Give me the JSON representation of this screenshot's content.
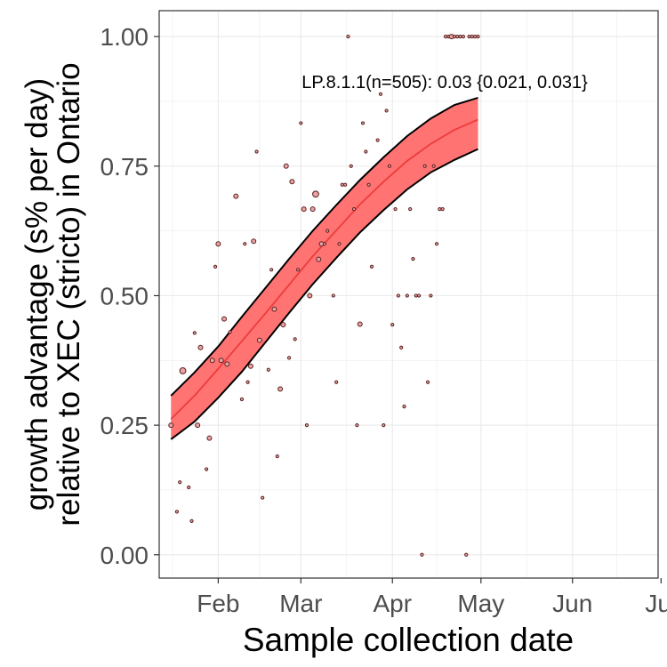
{
  "chart_data": {
    "type": "scatter",
    "title": "",
    "xlabel": "Sample collection date",
    "ylabel_lines": [
      "growth advantage (s% per day)",
      "relative to XEC (stricto) in Ontario"
    ],
    "xlim": [
      "2025-01-12",
      "2025-06-30"
    ],
    "ylim": [
      -0.045,
      1.05
    ],
    "x_ticks": [
      {
        "date": "2025-02-01",
        "label": "Feb"
      },
      {
        "date": "2025-03-01",
        "label": "Mar"
      },
      {
        "date": "2025-04-01",
        "label": "Apr"
      },
      {
        "date": "2025-05-01",
        "label": "May"
      },
      {
        "date": "2025-06-01",
        "label": "Jun"
      },
      {
        "date": "2025-07-01",
        "label": "Jul"
      }
    ],
    "y_ticks": [
      {
        "value": 0,
        "label": "0.00"
      },
      {
        "value": 0.25,
        "label": "0.25"
      },
      {
        "value": 0.5,
        "label": "0.50"
      },
      {
        "value": 0.75,
        "label": "0.75"
      },
      {
        "value": 1,
        "label": "1.00"
      }
    ],
    "grid": true,
    "annotation": "LP.8.1.1(n=505): 0.03 {0.021, 0.031}",
    "colors": {
      "ribbon": "#ff6b6b",
      "fit_line": "#ee3b3b",
      "ribbon_edge": "#000000",
      "point_fill": "#e8a3a3",
      "point_stroke": "#5a1f1f",
      "grid": "#ebebeb",
      "panel_border": "#333333"
    },
    "fit_series": {
      "name": "LP.8.1.1",
      "x": [
        "2025-01-16",
        "2025-01-24",
        "2025-02-01",
        "2025-02-09",
        "2025-02-17",
        "2025-02-25",
        "2025-03-05",
        "2025-03-13",
        "2025-03-21",
        "2025-03-29",
        "2025-04-06",
        "2025-04-14",
        "2025-04-22",
        "2025-04-30"
      ],
      "y": [
        0.262,
        0.307,
        0.359,
        0.412,
        0.466,
        0.521,
        0.576,
        0.626,
        0.676,
        0.72,
        0.76,
        0.793,
        0.82,
        0.84
      ],
      "lower": [
        0.223,
        0.257,
        0.303,
        0.353,
        0.41,
        0.467,
        0.522,
        0.573,
        0.622,
        0.665,
        0.705,
        0.738,
        0.762,
        0.783
      ],
      "upper": [
        0.307,
        0.352,
        0.402,
        0.459,
        0.515,
        0.571,
        0.625,
        0.675,
        0.723,
        0.767,
        0.808,
        0.842,
        0.868,
        0.882
      ]
    },
    "observed_points": {
      "x": [
        "2025-01-16",
        "2025-01-18",
        "2025-01-19",
        "2025-01-20",
        "2025-01-22",
        "2025-01-23",
        "2025-01-24",
        "2025-01-25",
        "2025-01-26",
        "2025-01-28",
        "2025-01-29",
        "2025-01-30",
        "2025-01-31",
        "2025-02-01",
        "2025-02-02",
        "2025-02-03",
        "2025-02-04",
        "2025-02-05",
        "2025-02-07",
        "2025-02-09",
        "2025-02-10",
        "2025-02-11",
        "2025-02-12",
        "2025-02-13",
        "2025-02-14",
        "2025-02-15",
        "2025-02-16",
        "2025-02-18",
        "2025-02-19",
        "2025-02-20",
        "2025-02-21",
        "2025-02-22",
        "2025-02-23",
        "2025-02-24",
        "2025-02-25",
        "2025-02-26",
        "2025-02-27",
        "2025-02-28",
        "2025-03-01",
        "2025-03-02",
        "2025-03-03",
        "2025-03-04",
        "2025-03-05",
        "2025-03-06",
        "2025-03-07",
        "2025-03-08",
        "2025-03-09",
        "2025-03-10",
        "2025-03-12",
        "2025-03-13",
        "2025-03-14",
        "2025-03-15",
        "2025-03-16",
        "2025-03-17",
        "2025-03-18",
        "2025-03-19",
        "2025-03-20",
        "2025-03-21",
        "2025-03-22",
        "2025-03-23",
        "2025-03-24",
        "2025-03-25",
        "2025-03-27",
        "2025-03-28",
        "2025-03-29",
        "2025-03-30",
        "2025-03-31",
        "2025-04-01",
        "2025-04-02",
        "2025-04-03",
        "2025-04-04",
        "2025-04-05",
        "2025-04-06",
        "2025-04-07",
        "2025-04-08",
        "2025-04-09",
        "2025-04-10",
        "2025-04-11",
        "2025-04-12",
        "2025-04-13",
        "2025-04-14",
        "2025-04-15",
        "2025-04-16",
        "2025-04-17",
        "2025-04-18",
        "2025-04-19",
        "2025-04-20",
        "2025-04-21",
        "2025-04-22",
        "2025-04-23",
        "2025-04-24",
        "2025-04-25",
        "2025-04-26",
        "2025-04-27",
        "2025-04-28",
        "2025-04-29",
        "2025-04-30"
      ],
      "y": [
        0.25,
        0.083,
        0.14,
        0.355,
        0.13,
        0.065,
        0.428,
        0.25,
        0.4,
        0.165,
        0.225,
        0.375,
        0.556,
        0.6,
        0.375,
        0.455,
        0.368,
        0.43,
        0.692,
        0.3,
        0.6,
        0.333,
        0.364,
        0.605,
        0.778,
        0.414,
        0.11,
        0.357,
        0.55,
        0.474,
        0.19,
        0.32,
        0.444,
        0.75,
        0.38,
        0.72,
        0.416,
        0.55,
        0.833,
        0.667,
        0.25,
        0.5,
        0.667,
        0.696,
        0.57,
        0.6,
        0.6,
        0.625,
        0.5,
        0.333,
        0.6,
        0.714,
        0.714,
        1.0,
        0.75,
        0.667,
        0.25,
        0.445,
        0.833,
        0.778,
        0.714,
        0.556,
        0.8,
        0.889,
        0.25,
        0.857,
        0.75,
        0.444,
        0.667,
        0.5,
        0.4,
        0.286,
        0.5,
        0.667,
        0.571,
        0.5,
        0.5,
        0.0,
        0.75,
        0.333,
        0.5,
        0.75,
        0.6,
        0.667,
        0.667,
        1.0,
        1.0,
        1.0,
        1.0,
        1.0,
        1.0,
        1.0,
        0.0,
        1.0,
        1.0,
        1.0,
        1.0
      ],
      "n": [
        2,
        1,
        1,
        3,
        1,
        1,
        1,
        2,
        2,
        1,
        2,
        2,
        1,
        2,
        2,
        2,
        2,
        1,
        2,
        1,
        1,
        1,
        2,
        2,
        1,
        2,
        1,
        1,
        1,
        2,
        1,
        2,
        2,
        2,
        1,
        2,
        1,
        1,
        1,
        2,
        1,
        2,
        2,
        3,
        2,
        2,
        1,
        1,
        1,
        1,
        1,
        1,
        1,
        1,
        1,
        1,
        1,
        2,
        1,
        1,
        1,
        1,
        1,
        1,
        1,
        1,
        1,
        1,
        1,
        1,
        1,
        1,
        1,
        1,
        1,
        1,
        1,
        1,
        1,
        1,
        1,
        1,
        1,
        1,
        1,
        1,
        1,
        2,
        1,
        1,
        1,
        1,
        1,
        1,
        1,
        1,
        1
      ]
    }
  }
}
